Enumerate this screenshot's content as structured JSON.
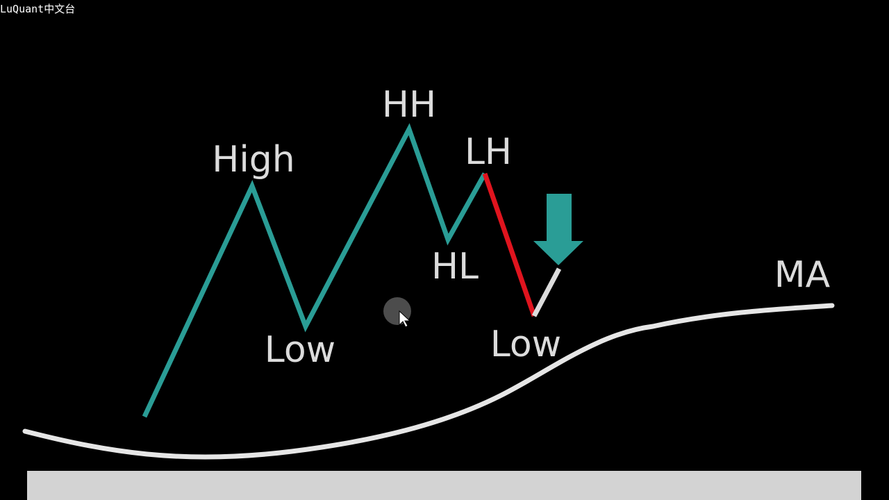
{
  "watermark": "LuQuant中文台",
  "labels": {
    "high": "High",
    "low_1": "Low",
    "hh": "HH",
    "lh": "LH",
    "hl": "HL",
    "low_2": "Low",
    "ma": "MA"
  },
  "colors": {
    "background": "#000000",
    "price_line": "#2a9d96",
    "breakdown_segment": "#e0141e",
    "retrace_segment": "#dcdcdc",
    "ma_line": "#e6e6e6",
    "arrow": "#2a9d96",
    "label_text": "#dcdcdc",
    "bottom_bar": "#d3d3d3"
  },
  "icons": {
    "arrow": "down-arrow-icon",
    "cursor": "mouse-cursor-icon"
  }
}
